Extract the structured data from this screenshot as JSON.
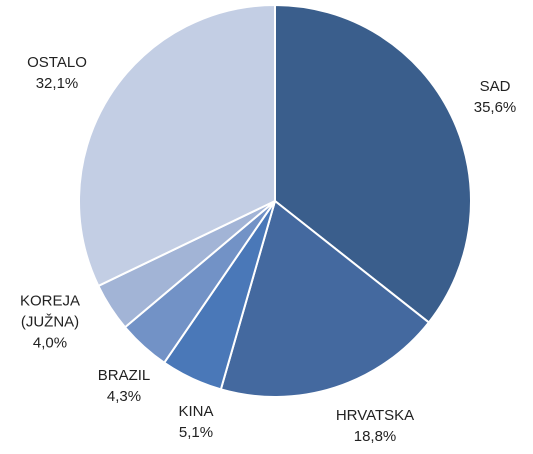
{
  "chart_data": {
    "type": "pie",
    "categories": [
      "SAD",
      "HRVATSKA",
      "KINA",
      "BRAZIL",
      "KOREJA (JUŽNA)",
      "OSTALO"
    ],
    "values": [
      35.6,
      18.8,
      5.1,
      4.3,
      4.0,
      32.1
    ],
    "value_labels": [
      "35,6%",
      "18,8%",
      "5,1%",
      "4,3%",
      "4,0%",
      "32,1%"
    ],
    "colors": [
      "#3a5e8c",
      "#44699f",
      "#4a78b8",
      "#7292c6",
      "#a2b4d6",
      "#c3cee4"
    ]
  }
}
